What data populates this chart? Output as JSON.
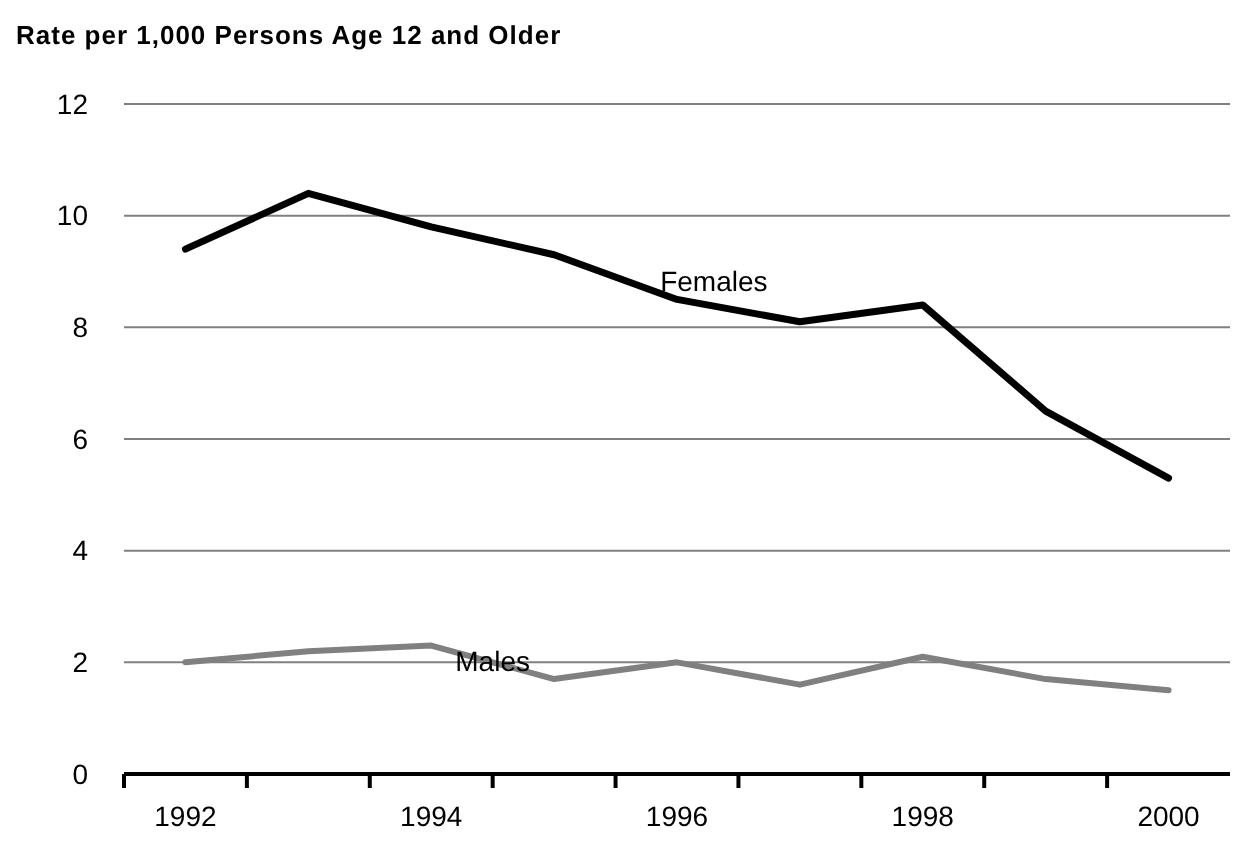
{
  "chart_data": {
    "type": "line",
    "title": "Rate per 1,000 Persons Age 12 and Older",
    "categories": [
      "1992",
      null,
      "1994",
      null,
      "1996",
      null,
      "1998",
      null,
      "2000"
    ],
    "series": [
      {
        "name": "Females",
        "color": "#000000",
        "values": [
          9.4,
          10.4,
          9.8,
          9.3,
          8.5,
          8.1,
          8.4,
          6.5,
          5.3
        ]
      },
      {
        "name": "Males",
        "color": "#808080",
        "values": [
          2.0,
          2.2,
          2.3,
          1.7,
          2.0,
          1.6,
          2.1,
          1.7,
          1.5
        ]
      }
    ],
    "ylim": [
      0,
      12
    ],
    "yticks": [
      0,
      2,
      4,
      6,
      8,
      10,
      12
    ],
    "grid": "y",
    "legend": false,
    "marker": "none",
    "line_style": "solid"
  }
}
